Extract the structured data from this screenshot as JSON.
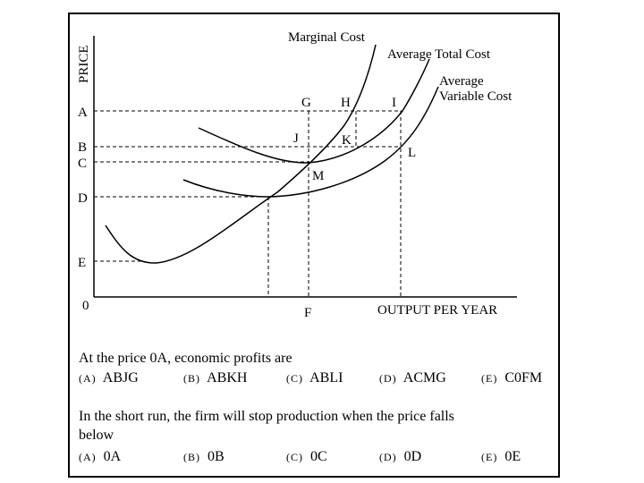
{
  "diagram": {
    "axis_y_label": "PRICE",
    "axis_x_label": "OUTPUT PER YEAR",
    "origin": "0",
    "price_levels": [
      "A",
      "B",
      "C",
      "D",
      "E"
    ],
    "output_level": "F",
    "curves": {
      "mc": "Marginal Cost",
      "atc": "Average Total Cost",
      "avc_line1": "Average",
      "avc_line2": "Variable Cost"
    },
    "points": {
      "G": "G",
      "H": "H",
      "I": "I",
      "J": "J",
      "K": "K",
      "L": "L",
      "M": "M"
    }
  },
  "questions": [
    {
      "text": "At the price 0A, economic profits are",
      "text_line2": "",
      "options": [
        {
          "key": "(A)",
          "value": "ABJG"
        },
        {
          "key": "(B)",
          "value": "ABKH"
        },
        {
          "key": "(C)",
          "value": "ABLI"
        },
        {
          "key": "(D)",
          "value": "ACMG"
        },
        {
          "key": "(E)",
          "value": "C0FM"
        }
      ]
    },
    {
      "text": "In the short run, the firm will stop production when the price falls",
      "text_line2": "below",
      "options": [
        {
          "key": "(A)",
          "value": "0A"
        },
        {
          "key": "(B)",
          "value": "0B"
        },
        {
          "key": "(C)",
          "value": "0C"
        },
        {
          "key": "(D)",
          "value": "0D"
        },
        {
          "key": "(E)",
          "value": "0E"
        }
      ]
    }
  ]
}
